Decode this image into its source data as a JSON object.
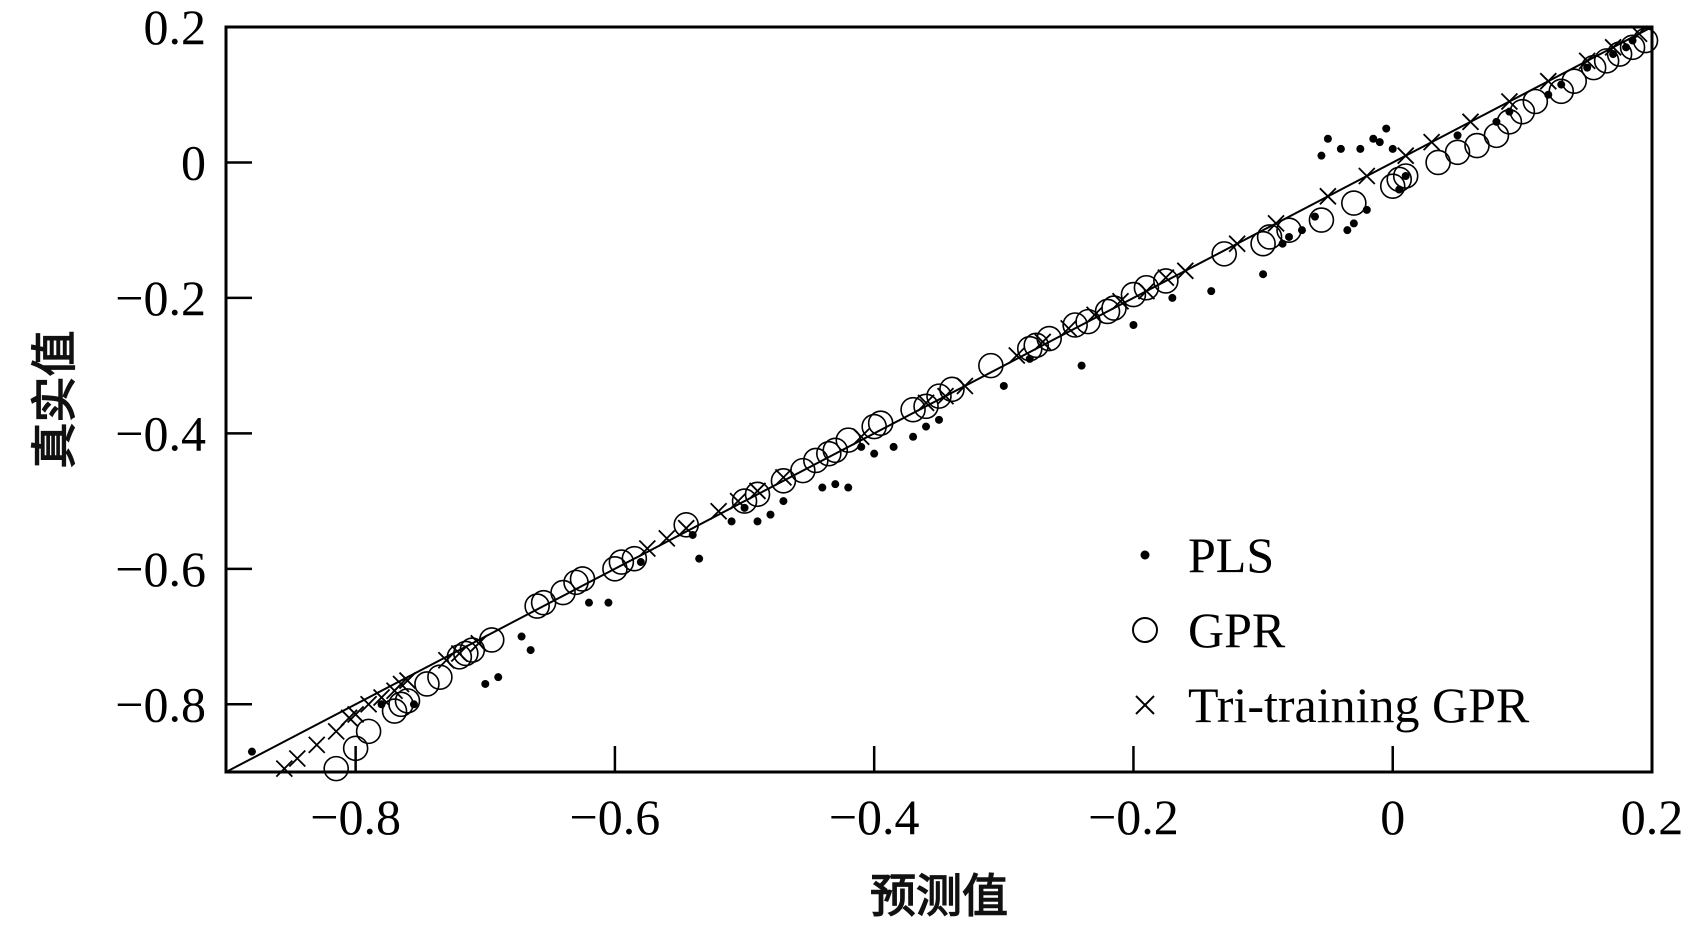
{
  "chart_data": {
    "type": "scatter",
    "xlabel": "预测值",
    "ylabel": "真实值",
    "xlim": [
      -0.9,
      0.2
    ],
    "ylim": [
      -0.9,
      0.2
    ],
    "x_ticks": [
      -0.8,
      -0.6,
      -0.4,
      -0.2,
      0,
      0.2
    ],
    "y_ticks": [
      0.2,
      0,
      -0.2,
      -0.4,
      -0.6,
      -0.8
    ],
    "x_tick_labels": [
      "−0.8",
      "−0.6",
      "−0.4",
      "−0.2",
      "0",
      "0.2"
    ],
    "y_tick_labels": [
      "0.2",
      "0",
      "−0.2",
      "−0.4",
      "−0.6",
      "−0.8"
    ],
    "reference_line": "y = x",
    "legend_position": "bottom-right",
    "series": [
      {
        "name": "PLS",
        "marker": "dot",
        "points": [
          [
            -0.88,
            -0.87
          ],
          [
            -0.78,
            -0.8
          ],
          [
            -0.755,
            -0.8
          ],
          [
            -0.7,
            -0.77
          ],
          [
            -0.69,
            -0.76
          ],
          [
            -0.672,
            -0.7
          ],
          [
            -0.665,
            -0.72
          ],
          [
            -0.62,
            -0.65
          ],
          [
            -0.605,
            -0.65
          ],
          [
            -0.58,
            -0.59
          ],
          [
            -0.535,
            -0.585
          ],
          [
            -0.54,
            -0.55
          ],
          [
            -0.51,
            -0.53
          ],
          [
            -0.5,
            -0.51
          ],
          [
            -0.49,
            -0.53
          ],
          [
            -0.48,
            -0.52
          ],
          [
            -0.47,
            -0.5
          ],
          [
            -0.44,
            -0.48
          ],
          [
            -0.43,
            -0.475
          ],
          [
            -0.42,
            -0.48
          ],
          [
            -0.41,
            -0.42
          ],
          [
            -0.4,
            -0.43
          ],
          [
            -0.385,
            -0.42
          ],
          [
            -0.37,
            -0.405
          ],
          [
            -0.36,
            -0.39
          ],
          [
            -0.35,
            -0.38
          ],
          [
            -0.3,
            -0.33
          ],
          [
            -0.28,
            -0.29
          ],
          [
            -0.24,
            -0.3
          ],
          [
            -0.2,
            -0.24
          ],
          [
            -0.17,
            -0.2
          ],
          [
            -0.14,
            -0.19
          ],
          [
            -0.1,
            -0.165
          ],
          [
            -0.085,
            -0.12
          ],
          [
            -0.08,
            -0.11
          ],
          [
            -0.07,
            -0.1
          ],
          [
            -0.06,
            -0.08
          ],
          [
            -0.055,
            0.01
          ],
          [
            -0.05,
            0.035
          ],
          [
            -0.04,
            0.02
          ],
          [
            -0.035,
            -0.1
          ],
          [
            -0.03,
            -0.09
          ],
          [
            -0.025,
            0.02
          ],
          [
            -0.02,
            -0.07
          ],
          [
            -0.015,
            0.035
          ],
          [
            -0.01,
            0.03
          ],
          [
            -0.005,
            0.05
          ],
          [
            0.0,
            0.02
          ],
          [
            0.005,
            -0.04
          ],
          [
            0.01,
            -0.02
          ],
          [
            0.05,
            0.04
          ],
          [
            0.08,
            0.06
          ],
          [
            0.09,
            0.075
          ],
          [
            0.12,
            0.1
          ],
          [
            0.13,
            0.115
          ],
          [
            0.15,
            0.14
          ],
          [
            0.17,
            0.16
          ],
          [
            0.18,
            0.17
          ],
          [
            0.185,
            0.18
          ]
        ]
      },
      {
        "name": "GPR",
        "marker": "circle",
        "points": [
          [
            -0.815,
            -0.895
          ],
          [
            -0.8,
            -0.865
          ],
          [
            -0.79,
            -0.84
          ],
          [
            -0.77,
            -0.81
          ],
          [
            -0.765,
            -0.8
          ],
          [
            -0.76,
            -0.795
          ],
          [
            -0.745,
            -0.77
          ],
          [
            -0.735,
            -0.76
          ],
          [
            -0.72,
            -0.73
          ],
          [
            -0.715,
            -0.725
          ],
          [
            -0.71,
            -0.72
          ],
          [
            -0.695,
            -0.705
          ],
          [
            -0.66,
            -0.655
          ],
          [
            -0.655,
            -0.65
          ],
          [
            -0.64,
            -0.635
          ],
          [
            -0.63,
            -0.62
          ],
          [
            -0.625,
            -0.615
          ],
          [
            -0.6,
            -0.6
          ],
          [
            -0.595,
            -0.59
          ],
          [
            -0.585,
            -0.585
          ],
          [
            -0.545,
            -0.535
          ],
          [
            -0.5,
            -0.5
          ],
          [
            -0.49,
            -0.49
          ],
          [
            -0.47,
            -0.47
          ],
          [
            -0.455,
            -0.455
          ],
          [
            -0.445,
            -0.44
          ],
          [
            -0.435,
            -0.43
          ],
          [
            -0.43,
            -0.425
          ],
          [
            -0.42,
            -0.41
          ],
          [
            -0.4,
            -0.39
          ],
          [
            -0.395,
            -0.385
          ],
          [
            -0.37,
            -0.365
          ],
          [
            -0.36,
            -0.36
          ],
          [
            -0.35,
            -0.345
          ],
          [
            -0.34,
            -0.335
          ],
          [
            -0.31,
            -0.3
          ],
          [
            -0.28,
            -0.275
          ],
          [
            -0.275,
            -0.27
          ],
          [
            -0.265,
            -0.26
          ],
          [
            -0.245,
            -0.24
          ],
          [
            -0.235,
            -0.235
          ],
          [
            -0.22,
            -0.22
          ],
          [
            -0.215,
            -0.215
          ],
          [
            -0.2,
            -0.195
          ],
          [
            -0.19,
            -0.185
          ],
          [
            -0.175,
            -0.175
          ],
          [
            -0.13,
            -0.135
          ],
          [
            -0.1,
            -0.12
          ],
          [
            -0.095,
            -0.11
          ],
          [
            -0.08,
            -0.1
          ],
          [
            -0.055,
            -0.085
          ],
          [
            -0.03,
            -0.06
          ],
          [
            0.0,
            -0.035
          ],
          [
            0.005,
            -0.025
          ],
          [
            0.01,
            -0.02
          ],
          [
            0.035,
            0.0
          ],
          [
            0.05,
            0.015
          ],
          [
            0.065,
            0.025
          ],
          [
            0.08,
            0.04
          ],
          [
            0.09,
            0.06
          ],
          [
            0.1,
            0.075
          ],
          [
            0.11,
            0.09
          ],
          [
            0.13,
            0.105
          ],
          [
            0.14,
            0.12
          ],
          [
            0.155,
            0.14
          ],
          [
            0.165,
            0.15
          ],
          [
            0.175,
            0.16
          ],
          [
            0.185,
            0.17
          ],
          [
            0.195,
            0.18
          ]
        ]
      },
      {
        "name": "Tri-training GPR",
        "marker": "x",
        "points": [
          [
            -0.855,
            -0.895
          ],
          [
            -0.845,
            -0.88
          ],
          [
            -0.83,
            -0.86
          ],
          [
            -0.815,
            -0.84
          ],
          [
            -0.805,
            -0.82
          ],
          [
            -0.8,
            -0.815
          ],
          [
            -0.79,
            -0.8
          ],
          [
            -0.78,
            -0.79
          ],
          [
            -0.77,
            -0.78
          ],
          [
            -0.765,
            -0.77
          ],
          [
            -0.76,
            -0.765
          ],
          [
            -0.73,
            -0.735
          ],
          [
            -0.72,
            -0.725
          ],
          [
            -0.705,
            -0.71
          ],
          [
            -0.575,
            -0.57
          ],
          [
            -0.56,
            -0.555
          ],
          [
            -0.545,
            -0.54
          ],
          [
            -0.52,
            -0.515
          ],
          [
            -0.505,
            -0.5
          ],
          [
            -0.49,
            -0.485
          ],
          [
            -0.47,
            -0.465
          ],
          [
            -0.41,
            -0.405
          ],
          [
            -0.36,
            -0.355
          ],
          [
            -0.345,
            -0.345
          ],
          [
            -0.33,
            -0.33
          ],
          [
            -0.29,
            -0.285
          ],
          [
            -0.27,
            -0.265
          ],
          [
            -0.25,
            -0.245
          ],
          [
            -0.23,
            -0.225
          ],
          [
            -0.21,
            -0.205
          ],
          [
            -0.19,
            -0.19
          ],
          [
            -0.175,
            -0.17
          ],
          [
            -0.16,
            -0.16
          ],
          [
            -0.12,
            -0.12
          ],
          [
            -0.09,
            -0.09
          ],
          [
            -0.05,
            -0.05
          ],
          [
            -0.02,
            -0.02
          ],
          [
            0.01,
            0.01
          ],
          [
            0.03,
            0.03
          ],
          [
            0.06,
            0.06
          ],
          [
            0.09,
            0.09
          ],
          [
            0.12,
            0.12
          ],
          [
            0.15,
            0.15
          ],
          [
            0.17,
            0.17
          ],
          [
            0.19,
            0.19
          ]
        ]
      }
    ]
  }
}
